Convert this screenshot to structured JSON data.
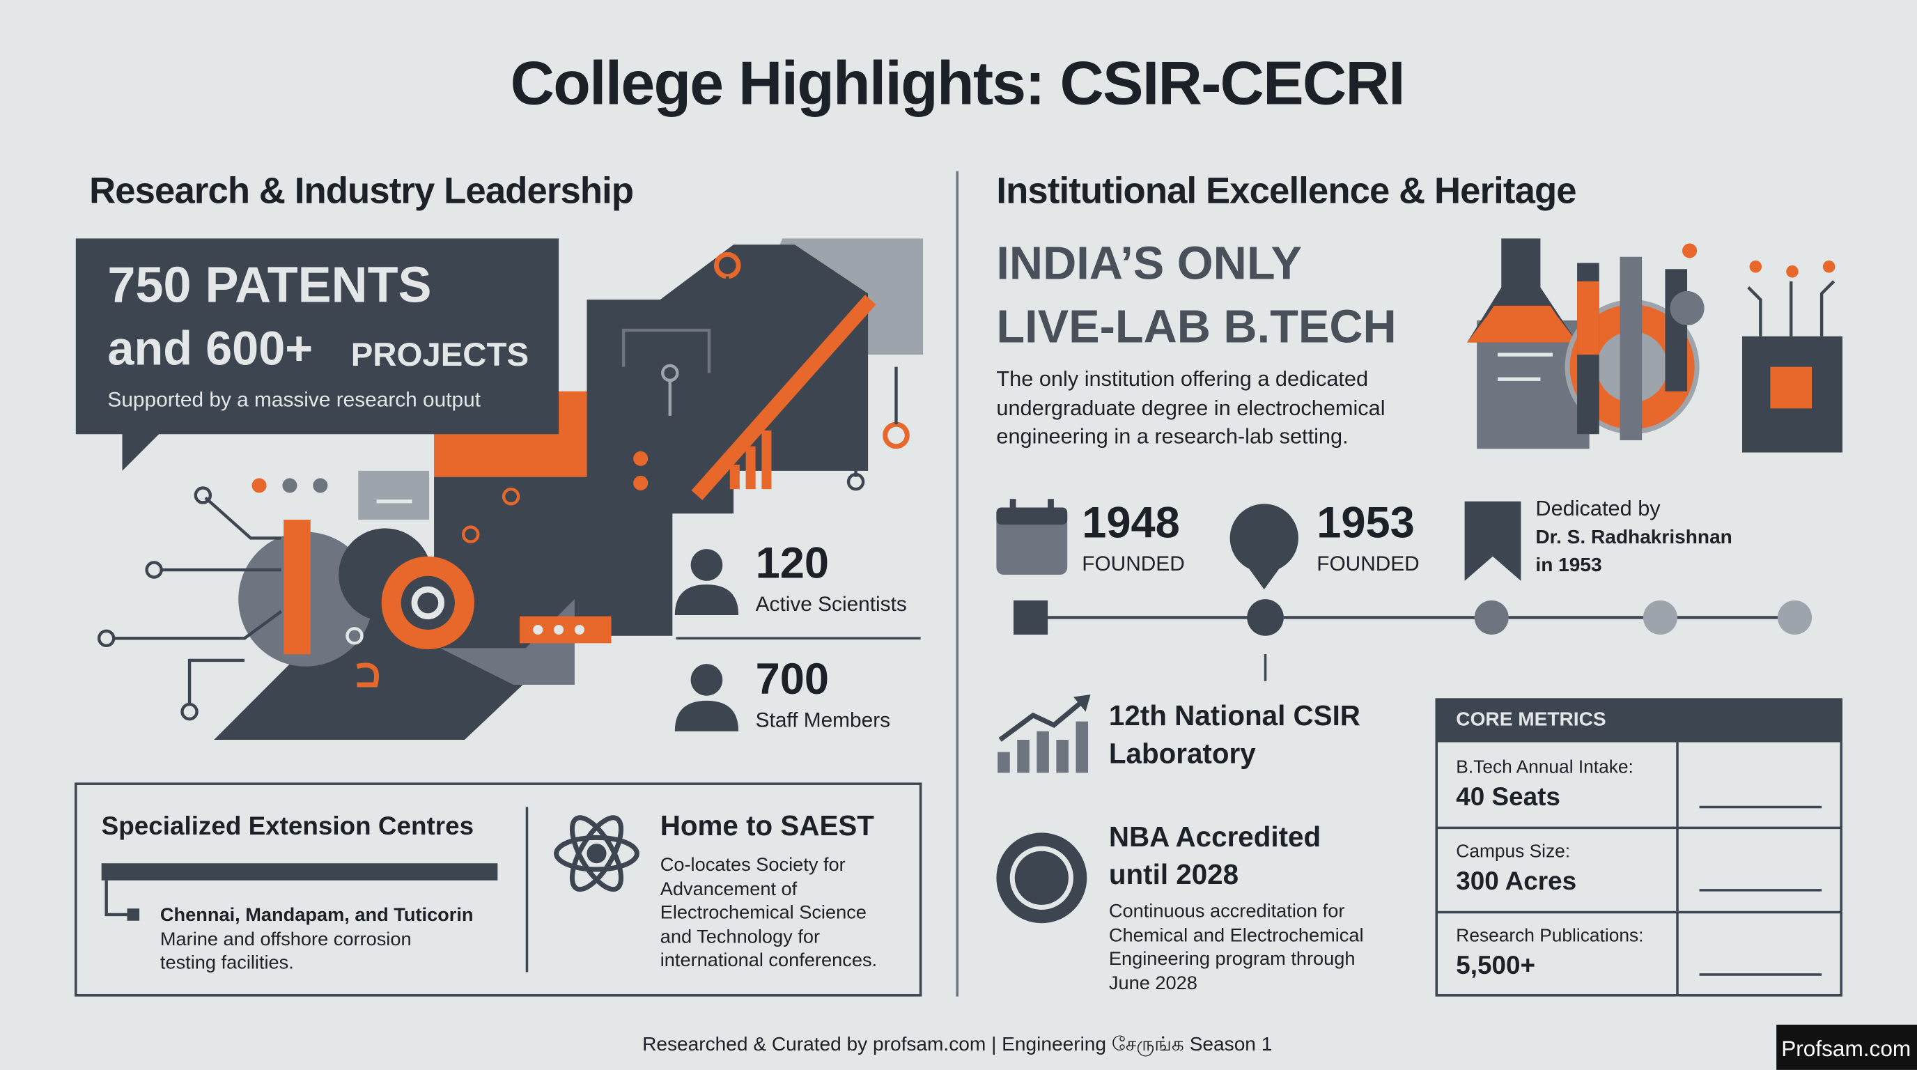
{
  "title": "College Highlights: CSIR-CECRI",
  "research": {
    "heading": "Research & Industry Leadership",
    "patents": {
      "line1": "750 PATENTS",
      "line2": "and 600+",
      "line2_suffix": "PROJECTS",
      "caption": "Supported by a massive research output"
    },
    "stats": [
      {
        "value": "120",
        "label": "Active Scientists"
      },
      {
        "value": "700",
        "label": "Staff Members"
      }
    ],
    "extension": {
      "heading": "Specialized Extension Centres",
      "locations": "Chennai, Mandapam, and Tuticorin",
      "description": [
        "Marine and offshore corrosion",
        "testing facilities."
      ]
    },
    "saest": {
      "heading": "Home to SAEST",
      "description": [
        "Co-locates Society for",
        "Advancement of",
        "Electrochemical Science",
        "and Technology for",
        "international conferences."
      ]
    }
  },
  "heritage": {
    "heading": "Institutional Excellence & Heritage",
    "headline": [
      "INDIA’S ONLY",
      "LIVE-LAB B.TECH"
    ],
    "description": [
      "The only institution offering a dedicated",
      "undergraduate degree in electrochemical",
      "engineering in a research-lab setting."
    ],
    "timeline": [
      {
        "year": "1948",
        "label": "FOUNDED"
      },
      {
        "year": "1953",
        "label": "FOUNDED"
      }
    ],
    "dedication": [
      "Dedicated by",
      "Dr. S. Radhakrishnan",
      "in 1953"
    ],
    "lab_rank": [
      "12th National CSIR",
      "Laboratory"
    ],
    "accreditation": {
      "heading": [
        "NBA Accredited",
        "until 2028"
      ],
      "description": [
        "Continuous accreditation for",
        "Chemical and Electrochemical",
        "Engineering program through",
        "June 2028"
      ]
    },
    "core_metrics": {
      "heading": "CORE METRICS",
      "rows": [
        {
          "label": "B.Tech Annual Intake:",
          "value": "40 Seats"
        },
        {
          "label": "Campus Size:",
          "value": "300 Acres"
        },
        {
          "label": "Research Publications:",
          "value": "5,500+"
        }
      ]
    }
  },
  "footer": "Researched & Curated by profsam.com | Engineering சேருங்க Season 1",
  "badge": "Profsam.com"
}
